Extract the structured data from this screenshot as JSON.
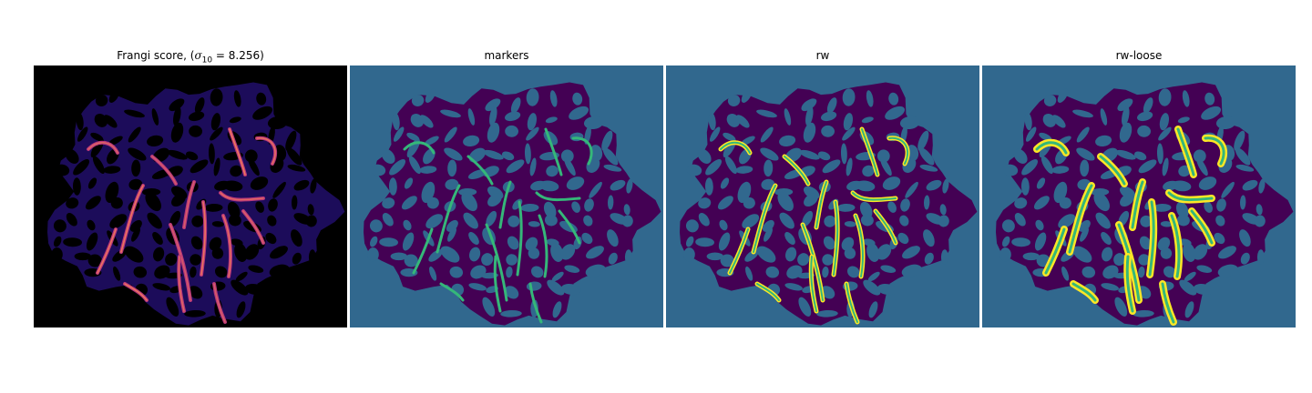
{
  "figure": {
    "panels": [
      {
        "id": "frangi",
        "title": {
          "prefix": "Frangi score, (",
          "symbol": "σ",
          "subscript": "10",
          "suffix": " = 8.256)"
        },
        "colormap": "magma",
        "background_color": "#000000"
      },
      {
        "id": "markers",
        "title": "markers",
        "colormap": "viridis",
        "background_color": "#31688e",
        "blob_color": "#440154",
        "vessel_color": "#35b779"
      },
      {
        "id": "rw",
        "title": "rw",
        "colormap": "viridis",
        "background_color": "#31688e",
        "blob_color": "#440154",
        "vessel_color": "#fde725"
      },
      {
        "id": "rw-loose",
        "title": "rw-loose",
        "colormap": "viridis",
        "background_color": "#31688e",
        "blob_color": "#440154",
        "vessel_color": "#fde725"
      }
    ]
  }
}
